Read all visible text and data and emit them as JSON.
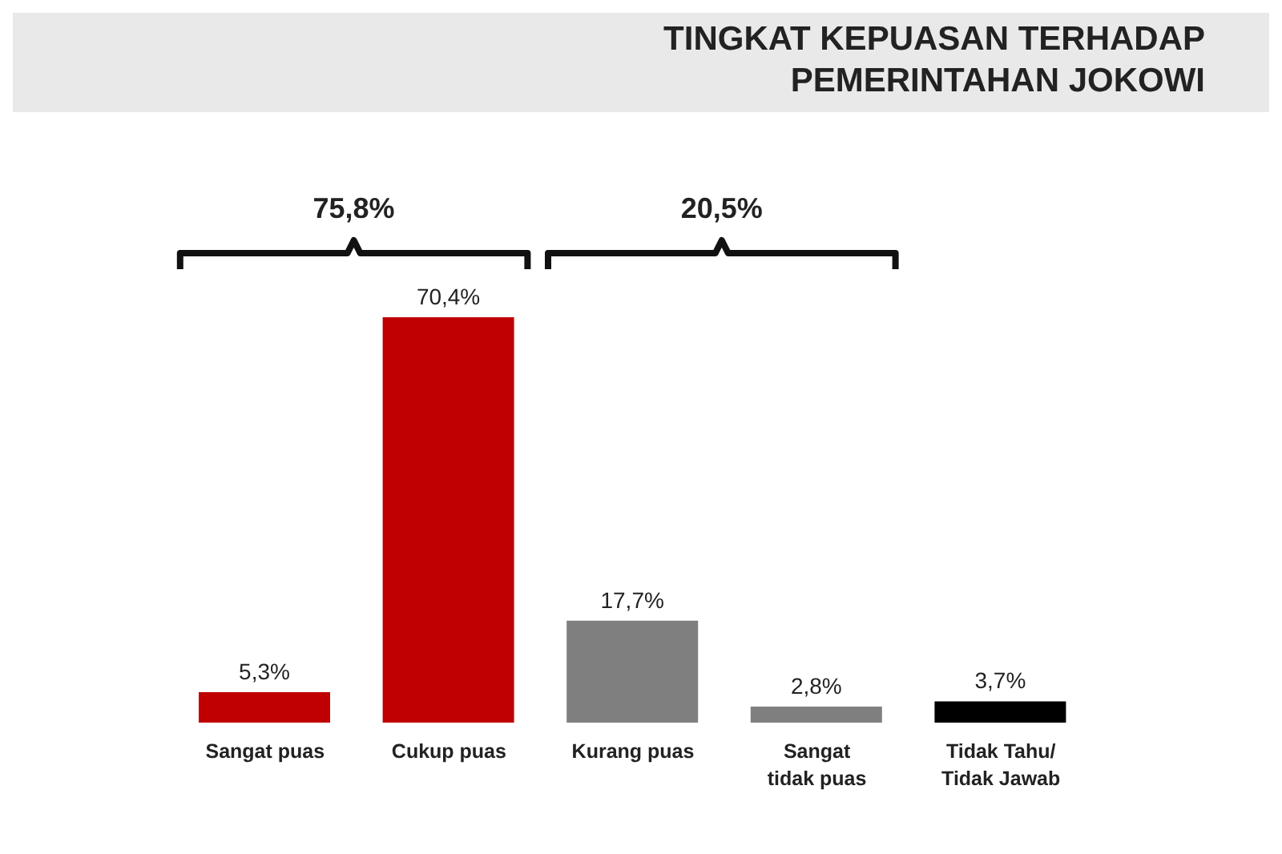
{
  "chart_data": {
    "type": "bar",
    "title": "TINGKAT KEPUASAN TERHADAP PEMERINTAHAN JOKOWI",
    "categories": [
      "Sangat puas",
      "Cukup puas",
      "Kurang puas",
      "Sangat tidak puas",
      "Tidak Tahu/ Tidak Jawab"
    ],
    "values": [
      5.3,
      70.4,
      17.7,
      2.8,
      3.7
    ],
    "value_labels": [
      "5,3%",
      "70,4%",
      "17,7%",
      "2,8%",
      "3,7%"
    ],
    "colors": [
      "#c00000",
      "#c00000",
      "#7f7f7f",
      "#7f7f7f",
      "#000000"
    ],
    "annotations": [
      "75,8%",
      "20,5%"
    ]
  }
}
